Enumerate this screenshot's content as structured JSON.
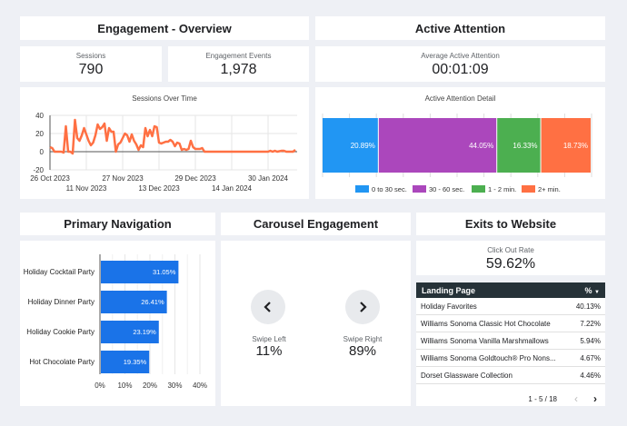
{
  "engagement": {
    "title": "Engagement - Overview",
    "sessions": {
      "label": "Sessions",
      "value": "790"
    },
    "events": {
      "label": "Engagement Events",
      "value": "1,978"
    }
  },
  "attention": {
    "title": "Active Attention",
    "average": {
      "label": "Average Active Attention",
      "value": "00:01:09"
    }
  },
  "navigation": {
    "title": "Primary Navigation"
  },
  "carousel": {
    "title": "Carousel Engagement",
    "left": {
      "label": "Swipe Left",
      "value": "11%"
    },
    "right": {
      "label": "Swipe Right",
      "value": "89%"
    }
  },
  "exits": {
    "title": "Exits to Website",
    "click_out": {
      "label": "Click Out Rate",
      "value": "59.62%"
    },
    "table": {
      "headers": {
        "page": "Landing Page",
        "pct": "%"
      },
      "rows": [
        {
          "page": "Holiday Favorites",
          "pct": "40.13%"
        },
        {
          "page": "Williams Sonoma Classic Hot Chocolate",
          "pct": "7.22%"
        },
        {
          "page": "Williams Sonoma Vanilla Marshmallows",
          "pct": "5.94%"
        },
        {
          "page": "Williams Sonoma Goldtouch® Pro Nons...",
          "pct": "4.67%"
        },
        {
          "page": "Dorset Glassware Collection",
          "pct": "4.46%"
        }
      ],
      "pagination": "1 - 5 / 18"
    }
  },
  "chart_data": [
    {
      "type": "line",
      "title": "Sessions Over Time",
      "color": "#ff7043",
      "ylim": [
        -20,
        40
      ],
      "yticks": [
        "40",
        "20",
        "0",
        "-20"
      ],
      "xticks": [
        "26 Oct 2023",
        "11 Nov 2023",
        "27 Nov 2023",
        "13 Dec 2023",
        "29 Dec 2023",
        "14 Jan 2024",
        "30 Jan 2024"
      ],
      "grid": true,
      "points": [
        [
          "2023-10-26",
          5
        ],
        [
          "2023-10-27",
          4
        ],
        [
          "2023-10-28",
          0
        ],
        [
          "2023-10-31",
          0
        ],
        [
          "2023-11-01",
          -1
        ],
        [
          "2023-11-02",
          28
        ],
        [
          "2023-11-03",
          0
        ],
        [
          "2023-11-04",
          0
        ],
        [
          "2023-11-05",
          -2
        ],
        [
          "2023-11-06",
          35
        ],
        [
          "2023-11-07",
          15
        ],
        [
          "2023-11-08",
          12
        ],
        [
          "2023-11-09",
          18
        ],
        [
          "2023-11-10",
          26
        ],
        [
          "2023-11-12",
          12
        ],
        [
          "2023-11-13",
          7
        ],
        [
          "2023-11-14",
          10
        ],
        [
          "2023-11-15",
          18
        ],
        [
          "2023-11-16",
          30
        ],
        [
          "2023-11-17",
          25
        ],
        [
          "2023-11-18",
          27
        ],
        [
          "2023-11-19",
          31
        ],
        [
          "2023-11-20",
          12
        ],
        [
          "2023-11-21",
          26
        ],
        [
          "2023-11-22",
          22
        ],
        [
          "2023-11-23",
          22
        ],
        [
          "2023-11-24",
          0
        ],
        [
          "2023-11-25",
          8
        ],
        [
          "2023-11-26",
          10
        ],
        [
          "2023-11-27",
          15
        ],
        [
          "2023-11-28",
          20
        ],
        [
          "2023-11-29",
          18
        ],
        [
          "2023-11-30",
          11
        ],
        [
          "2023-12-01",
          19
        ],
        [
          "2023-12-02",
          12
        ],
        [
          "2023-12-03",
          8
        ],
        [
          "2023-12-04",
          2
        ],
        [
          "2023-12-05",
          7
        ],
        [
          "2023-12-06",
          5
        ],
        [
          "2023-12-07",
          26
        ],
        [
          "2023-12-08",
          17
        ],
        [
          "2023-12-09",
          24
        ],
        [
          "2023-12-10",
          17
        ],
        [
          "2023-12-11",
          28
        ],
        [
          "2023-12-12",
          27
        ],
        [
          "2023-12-13",
          10
        ],
        [
          "2023-12-14",
          9
        ],
        [
          "2023-12-15",
          10
        ],
        [
          "2023-12-16",
          11
        ],
        [
          "2023-12-17",
          11
        ],
        [
          "2023-12-18",
          13
        ],
        [
          "2023-12-19",
          11
        ],
        [
          "2023-12-20",
          6
        ],
        [
          "2023-12-21",
          10
        ],
        [
          "2023-12-22",
          9
        ],
        [
          "2023-12-23",
          2
        ],
        [
          "2023-12-24",
          3
        ],
        [
          "2023-12-25",
          2
        ],
        [
          "2023-12-26",
          3
        ],
        [
          "2023-12-27",
          12
        ],
        [
          "2023-12-28",
          5
        ],
        [
          "2023-12-29",
          3
        ],
        [
          "2023-12-31",
          3
        ],
        [
          "2024-01-01",
          4
        ],
        [
          "2024-01-02",
          0
        ],
        [
          "2024-01-30",
          0
        ],
        [
          "2024-01-31",
          1
        ],
        [
          "2024-02-01",
          0
        ],
        [
          "2024-02-02",
          1
        ],
        [
          "2024-02-03",
          0
        ],
        [
          "2024-02-05",
          1
        ],
        [
          "2024-02-06",
          1
        ],
        [
          "2024-02-07",
          0
        ],
        [
          "2024-02-10",
          0
        ],
        [
          "2024-02-11",
          2
        ]
      ]
    },
    {
      "type": "bar",
      "orientation": "horizontal-stacked",
      "title": "Active Attention Detail",
      "legend_position": "bottom",
      "series": [
        {
          "name": "0 to 30 sec.",
          "value": 20.89,
          "label": "20.89%",
          "color": "#2196f3"
        },
        {
          "name": "30 - 60 sec.",
          "value": 44.05,
          "label": "44.05%",
          "color": "#ab47bc"
        },
        {
          "name": "1 - 2 min.",
          "value": 16.33,
          "label": "16.33%",
          "color": "#4caf50"
        },
        {
          "name": "2+ min.",
          "value": 18.73,
          "label": "18.73%",
          "color": "#ff7043"
        }
      ]
    },
    {
      "type": "bar",
      "orientation": "horizontal",
      "color": "#1a73e8",
      "categories": [
        "Holiday Cocktail Party",
        "Holiday Dinner Party",
        "Holiday Cookie Party",
        "Hot Chocolate Party"
      ],
      "values": [
        31.05,
        26.41,
        23.19,
        19.35
      ],
      "labels": [
        "31.05%",
        "26.41%",
        "23.19%",
        "19.35%"
      ],
      "xlim": [
        0,
        40
      ],
      "xticks": [
        "0%",
        "10%",
        "20%",
        "30%",
        "40%"
      ],
      "grid": true
    }
  ]
}
